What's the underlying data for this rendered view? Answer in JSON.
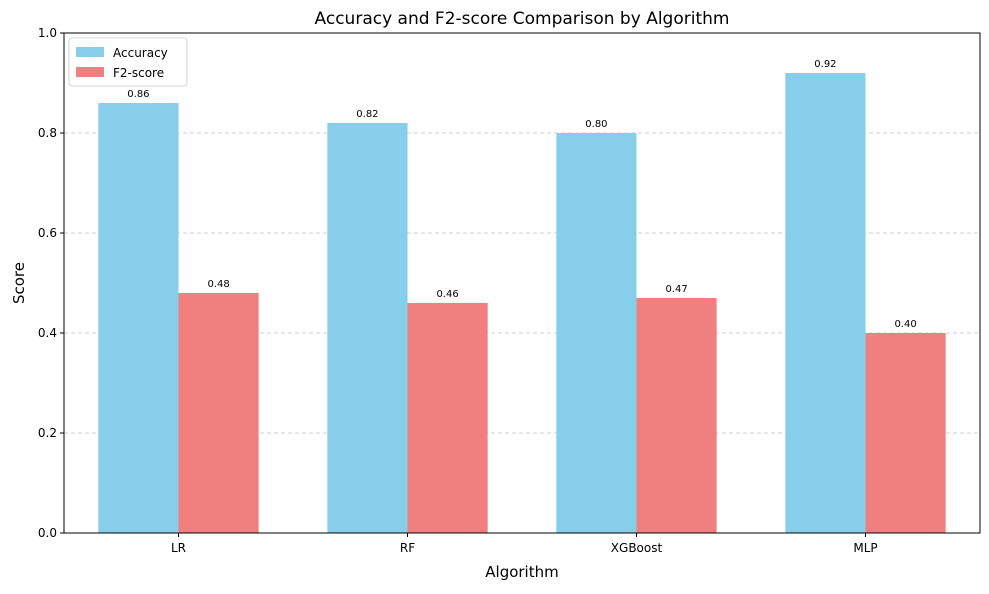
{
  "chart_data": {
    "type": "bar",
    "title": "Accuracy and F2-score Comparison by Algorithm",
    "xlabel": "Algorithm",
    "ylabel": "Score",
    "categories": [
      "LR",
      "RF",
      "XGBoost",
      "MLP"
    ],
    "series": [
      {
        "name": "Accuracy",
        "values": [
          0.86,
          0.82,
          0.8,
          0.92
        ],
        "color": "#87ceeb",
        "labels": [
          "0.86",
          "0.82",
          "0.80",
          "0.92"
        ]
      },
      {
        "name": "F2-score",
        "values": [
          0.48,
          0.46,
          0.47,
          0.4
        ],
        "color": "#f08080",
        "labels": [
          "0.48",
          "0.46",
          "0.47",
          "0.40"
        ]
      }
    ],
    "ylim": [
      0,
      1.0
    ],
    "yticks": [
      0.0,
      0.2,
      0.4,
      0.6,
      0.8,
      1.0
    ],
    "ytick_labels": [
      "0.0",
      "0.2",
      "0.4",
      "0.6",
      "0.8",
      "1.0"
    ],
    "grid": "y, dashed",
    "legend": "top-left"
  }
}
